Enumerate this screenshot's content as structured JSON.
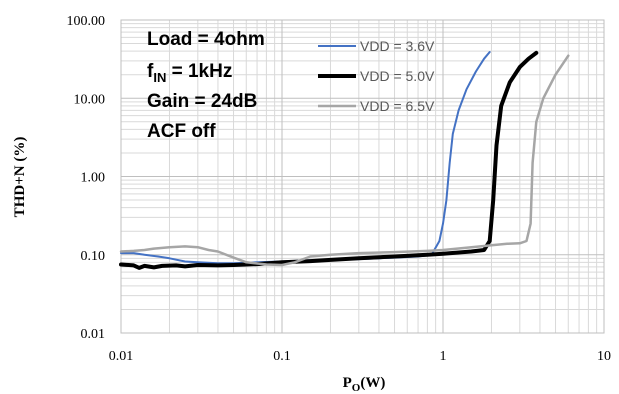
{
  "chart_data": {
    "type": "line",
    "title": "",
    "xlabel": "P",
    "xlabel_sub": "O",
    "xlabel_unit": "(W)",
    "ylabel": "THD+N (%)",
    "x_scale": "log",
    "y_scale": "log",
    "xlim": [
      0.01,
      10
    ],
    "ylim": [
      0.01,
      100
    ],
    "x_ticks": [
      0.01,
      0.1,
      1,
      10
    ],
    "x_tick_labels": [
      "0.01",
      "0.1",
      "1",
      "10"
    ],
    "y_ticks": [
      0.01,
      0.1,
      1,
      10,
      100
    ],
    "y_tick_labels": [
      "0.01",
      "0.10",
      "1.00",
      "10.00",
      "100.00"
    ],
    "grid": "major and minor",
    "legend_position": "top-center",
    "annotations": [
      {
        "text": "Load = 4ohm"
      },
      {
        "text": "f",
        "sub": "IN",
        "rest": " = 1kHz"
      },
      {
        "text": "Gain = 24dB"
      },
      {
        "text": "ACF off"
      }
    ],
    "series": [
      {
        "name": "VDD = 3.6V",
        "color": "#4472C4",
        "width": 2,
        "points": [
          [
            0.01,
            0.105
          ],
          [
            0.012,
            0.105
          ],
          [
            0.014,
            0.1
          ],
          [
            0.017,
            0.095
          ],
          [
            0.02,
            0.09
          ],
          [
            0.025,
            0.082
          ],
          [
            0.03,
            0.08
          ],
          [
            0.04,
            0.078
          ],
          [
            0.05,
            0.078
          ],
          [
            0.07,
            0.08
          ],
          [
            0.1,
            0.082
          ],
          [
            0.15,
            0.085
          ],
          [
            0.2,
            0.086
          ],
          [
            0.3,
            0.088
          ],
          [
            0.5,
            0.092
          ],
          [
            0.7,
            0.095
          ],
          [
            0.85,
            0.1
          ],
          [
            0.95,
            0.15
          ],
          [
            1.0,
            0.25
          ],
          [
            1.05,
            0.5
          ],
          [
            1.1,
            1.5
          ],
          [
            1.15,
            3.5
          ],
          [
            1.25,
            7
          ],
          [
            1.4,
            13
          ],
          [
            1.6,
            22
          ],
          [
            1.8,
            32
          ],
          [
            1.95,
            39
          ]
        ]
      },
      {
        "name": "VDD = 5.0V",
        "color": "#000000",
        "width": 4,
        "points": [
          [
            0.01,
            0.075
          ],
          [
            0.012,
            0.073
          ],
          [
            0.013,
            0.068
          ],
          [
            0.014,
            0.072
          ],
          [
            0.016,
            0.069
          ],
          [
            0.018,
            0.072
          ],
          [
            0.022,
            0.073
          ],
          [
            0.025,
            0.071
          ],
          [
            0.03,
            0.074
          ],
          [
            0.04,
            0.073
          ],
          [
            0.05,
            0.074
          ],
          [
            0.07,
            0.076
          ],
          [
            0.1,
            0.08
          ],
          [
            0.15,
            0.083
          ],
          [
            0.2,
            0.086
          ],
          [
            0.3,
            0.09
          ],
          [
            0.5,
            0.095
          ],
          [
            0.8,
            0.1
          ],
          [
            1.0,
            0.103
          ],
          [
            1.5,
            0.11
          ],
          [
            1.8,
            0.115
          ],
          [
            1.95,
            0.15
          ],
          [
            2.05,
            0.5
          ],
          [
            2.15,
            2.5
          ],
          [
            2.3,
            8
          ],
          [
            2.6,
            16
          ],
          [
            3.0,
            25
          ],
          [
            3.4,
            32
          ],
          [
            3.8,
            38
          ]
        ]
      },
      {
        "name": "VDD = 6.5V",
        "color": "#A6A6A6",
        "width": 2.5,
        "points": [
          [
            0.01,
            0.11
          ],
          [
            0.012,
            0.112
          ],
          [
            0.014,
            0.115
          ],
          [
            0.016,
            0.12
          ],
          [
            0.02,
            0.125
          ],
          [
            0.025,
            0.128
          ],
          [
            0.03,
            0.125
          ],
          [
            0.035,
            0.115
          ],
          [
            0.04,
            0.11
          ],
          [
            0.05,
            0.092
          ],
          [
            0.06,
            0.08
          ],
          [
            0.08,
            0.075
          ],
          [
            0.1,
            0.074
          ],
          [
            0.12,
            0.08
          ],
          [
            0.15,
            0.095
          ],
          [
            0.2,
            0.1
          ],
          [
            0.3,
            0.105
          ],
          [
            0.5,
            0.108
          ],
          [
            0.8,
            0.112
          ],
          [
            1.0,
            0.115
          ],
          [
            1.5,
            0.125
          ],
          [
            2.0,
            0.132
          ],
          [
            2.5,
            0.138
          ],
          [
            3.0,
            0.14
          ],
          [
            3.3,
            0.15
          ],
          [
            3.5,
            0.25
          ],
          [
            3.6,
            1.5
          ],
          [
            3.8,
            5
          ],
          [
            4.2,
            10
          ],
          [
            5.0,
            20
          ],
          [
            6.0,
            35
          ]
        ]
      }
    ]
  }
}
